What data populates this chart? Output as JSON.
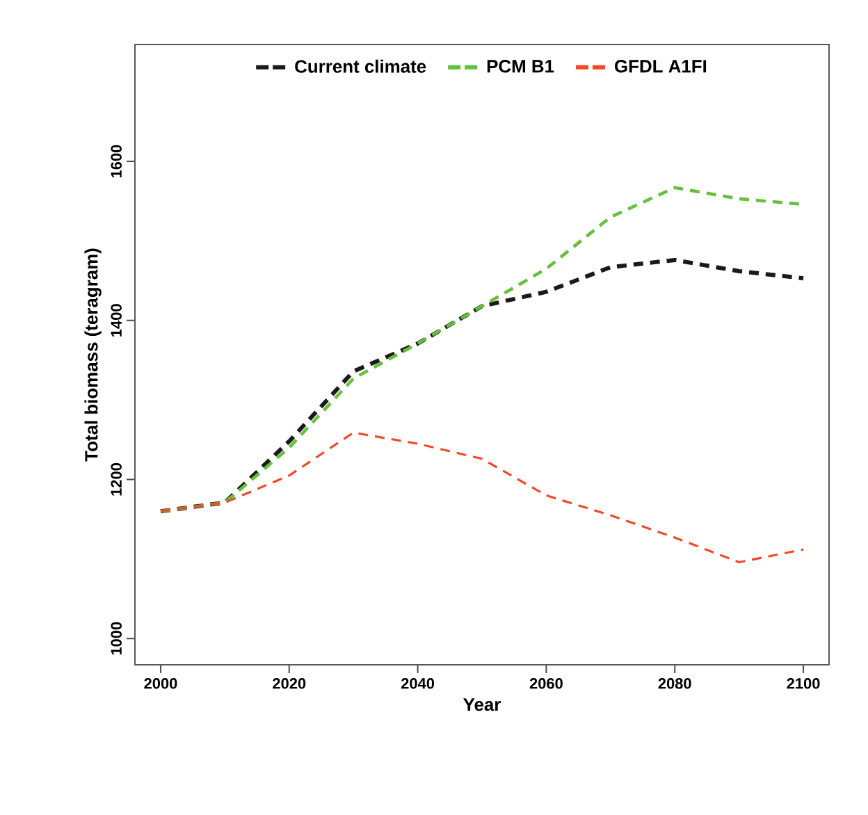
{
  "chart_data": {
    "type": "line",
    "xlabel": "Year",
    "ylabel": "Total biomass (teragram)",
    "x": [
      2000,
      2010,
      2020,
      2030,
      2040,
      2050,
      2060,
      2070,
      2080,
      2090,
      2100
    ],
    "series": [
      {
        "name": "Current climate",
        "color": "#1a1a1a",
        "values": [
          1160,
          1171,
          1248,
          1336,
          1371,
          1418,
          1436,
          1467,
          1476,
          1462,
          1453
        ]
      },
      {
        "name": "PCM B1",
        "color": "#66c03c",
        "values": [
          1160,
          1171,
          1240,
          1327,
          1371,
          1418,
          1465,
          1530,
          1567,
          1553,
          1546
        ]
      },
      {
        "name": "GFDL A1FI",
        "color": "#f04a2a",
        "values": [
          1160,
          1171,
          1205,
          1259,
          1245,
          1226,
          1180,
          1155,
          1127,
          1096,
          1112
        ]
      }
    ],
    "xlim": [
      1996,
      2104
    ],
    "ylim": [
      967,
      1747
    ],
    "xticks": [
      2000,
      2020,
      2040,
      2060,
      2080,
      2100
    ],
    "yticks": [
      1000,
      1200,
      1400,
      1600
    ],
    "grid": false,
    "legend": "top",
    "marker": "none",
    "line_style": "dashed"
  }
}
